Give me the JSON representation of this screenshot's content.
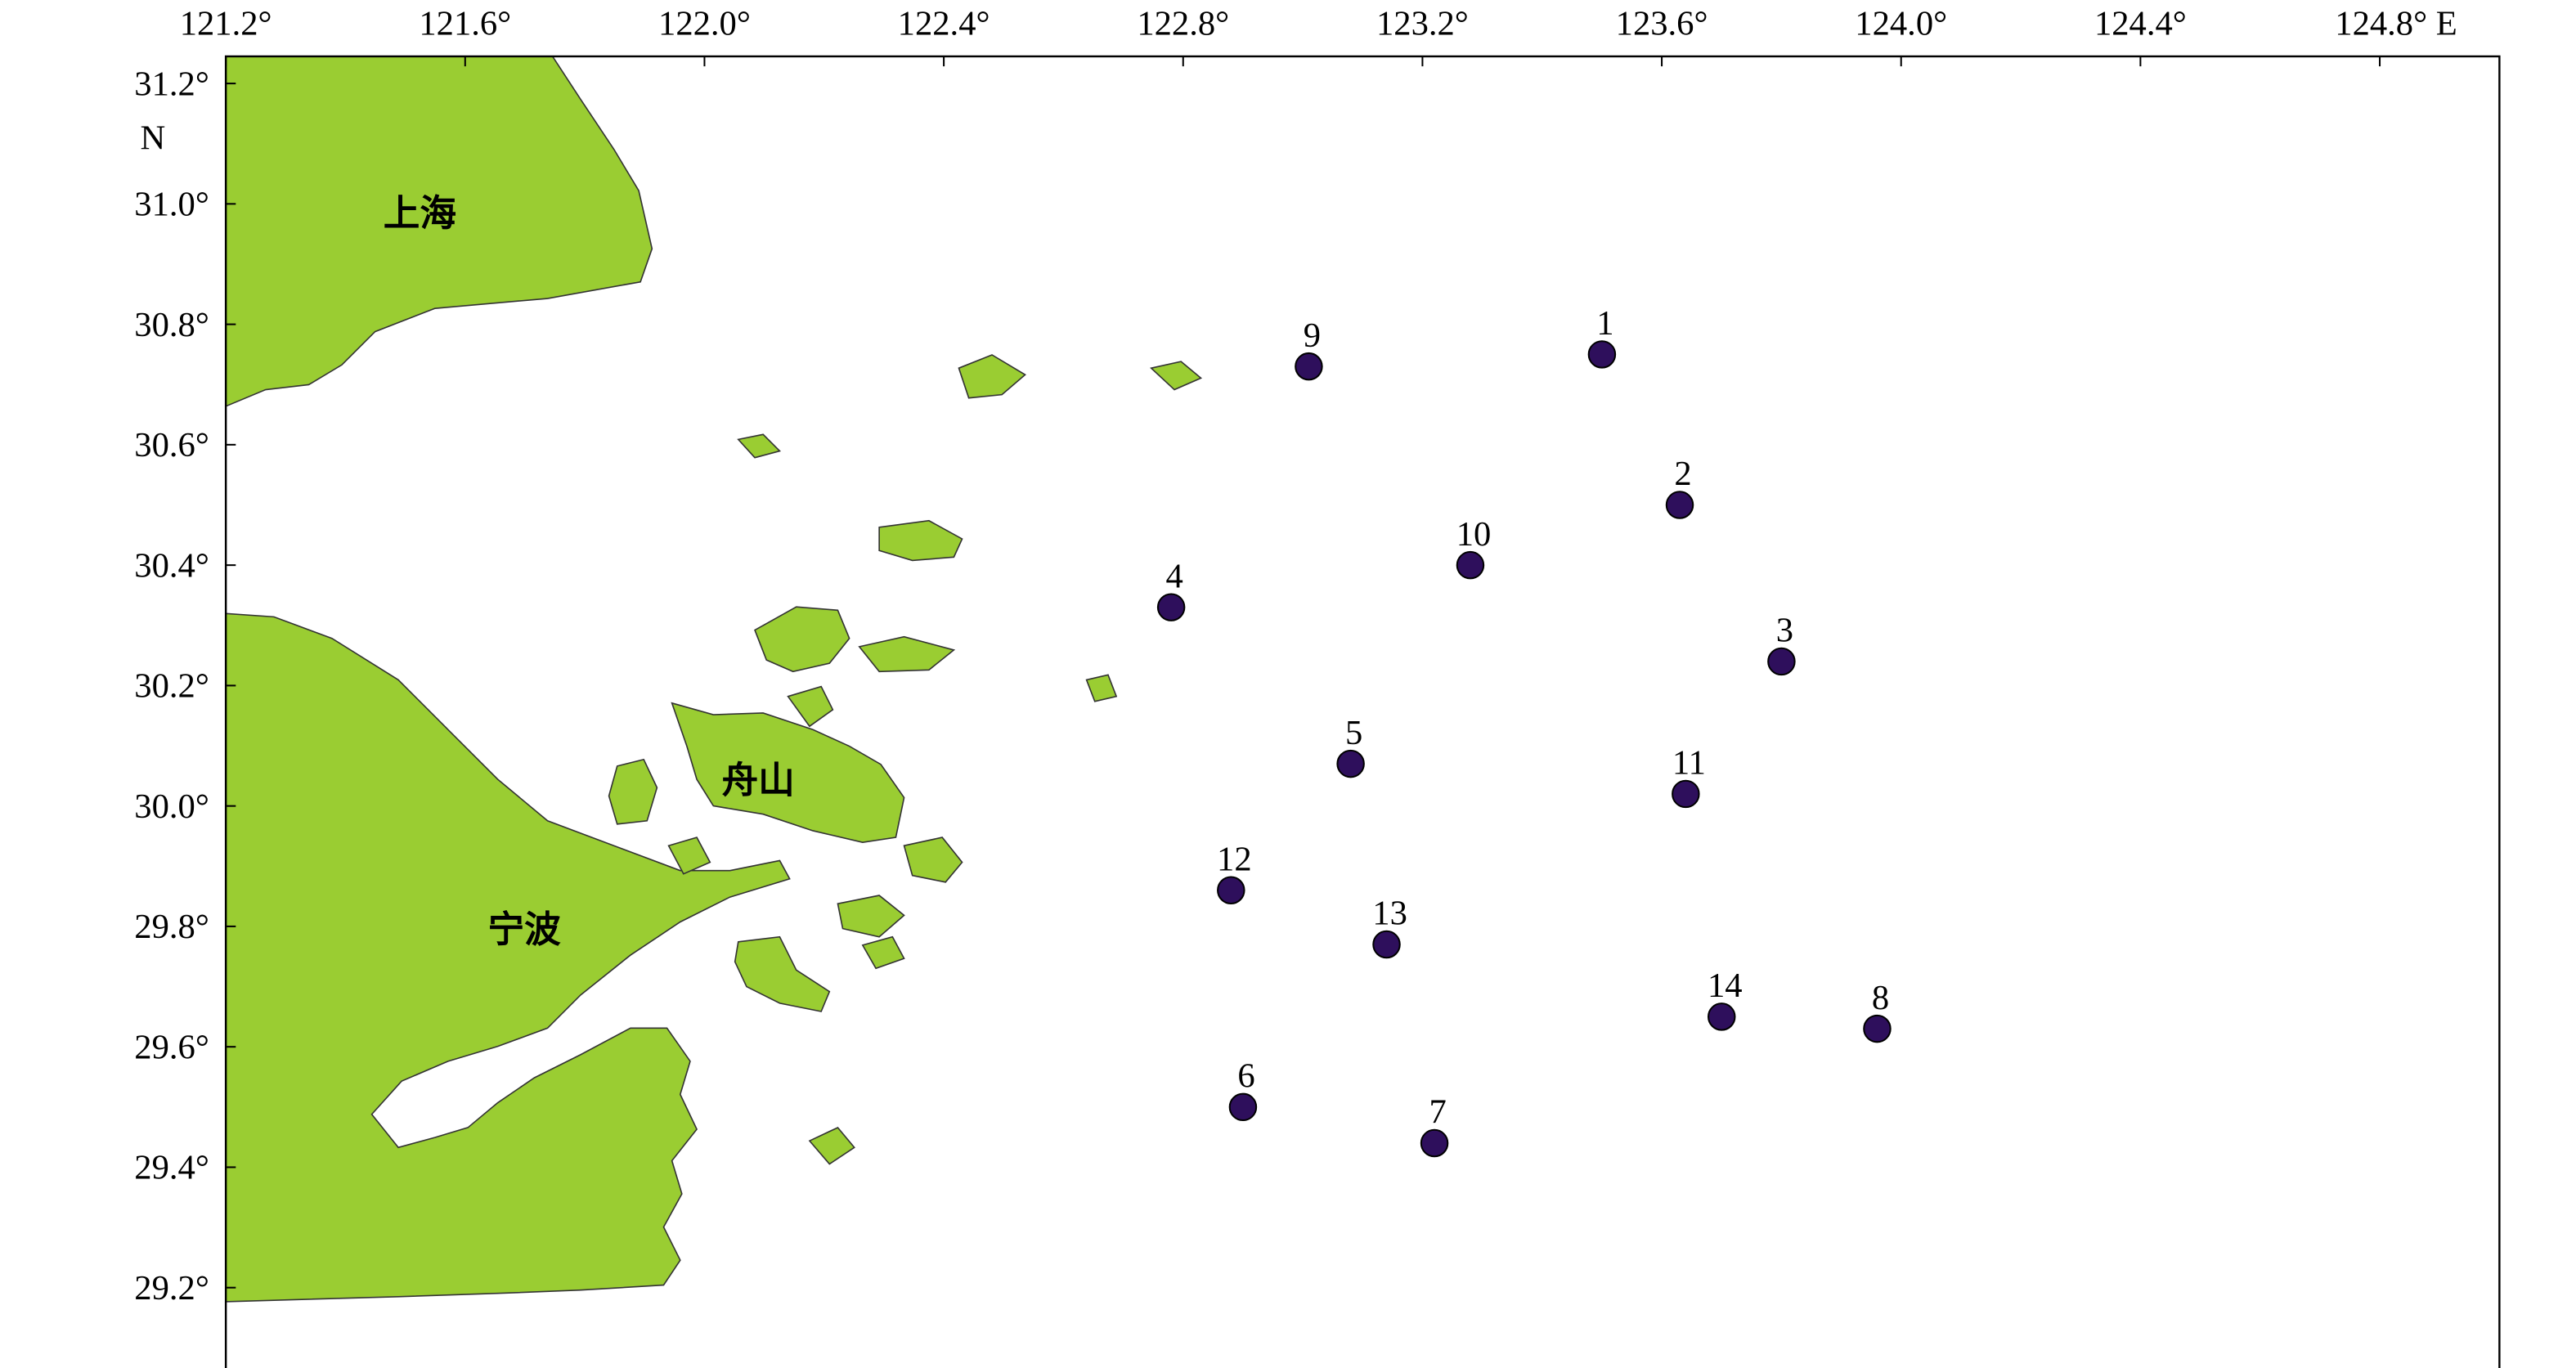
{
  "map": {
    "xlim": [
      121.2,
      125.0
    ],
    "ylim": [
      29.05,
      31.245
    ],
    "xticks": [
      {
        "value": 121.2,
        "label": "121.2°"
      },
      {
        "value": 121.6,
        "label": "121.6°"
      },
      {
        "value": 122.0,
        "label": "122.0°"
      },
      {
        "value": 122.4,
        "label": "122.4°"
      },
      {
        "value": 122.8,
        "label": "122.8°"
      },
      {
        "value": 123.2,
        "label": "123.2°"
      },
      {
        "value": 123.6,
        "label": "123.6°"
      },
      {
        "value": 124.0,
        "label": "124.0°"
      },
      {
        "value": 124.4,
        "label": "124.4°"
      },
      {
        "value": 124.8,
        "label": "124.8° E"
      }
    ],
    "yticks": [
      {
        "value": 31.2,
        "label": "31.2°"
      },
      {
        "value": 31.0,
        "label": "31.0°"
      },
      {
        "value": 30.8,
        "label": "30.8°"
      },
      {
        "value": 30.6,
        "label": "30.6°"
      },
      {
        "value": 30.4,
        "label": "30.4°"
      },
      {
        "value": 30.2,
        "label": "30.2°"
      },
      {
        "value": 30.0,
        "label": "30.0°"
      },
      {
        "value": 29.8,
        "label": "29.8°"
      },
      {
        "value": 29.6,
        "label": "29.6°"
      },
      {
        "value": 29.4,
        "label": "29.4°"
      },
      {
        "value": 29.2,
        "label": "29.2°"
      }
    ],
    "y_axis_label": "N",
    "places": [
      "上海",
      "舟山",
      "宁波"
    ],
    "land_color": "#9acd32",
    "station_color": "#2e0f5c",
    "stations": [
      {
        "label": "1",
        "lon": 123.5,
        "lat": 30.75
      },
      {
        "label": "2",
        "lon": 123.63,
        "lat": 30.5
      },
      {
        "label": "3",
        "lon": 123.8,
        "lat": 30.24
      },
      {
        "label": "4",
        "lon": 122.78,
        "lat": 30.33
      },
      {
        "label": "5",
        "lon": 123.08,
        "lat": 30.07
      },
      {
        "label": "6",
        "lon": 122.9,
        "lat": 29.5
      },
      {
        "label": "7",
        "lon": 123.22,
        "lat": 29.44
      },
      {
        "label": "8",
        "lon": 123.96,
        "lat": 29.63
      },
      {
        "label": "9",
        "lon": 123.01,
        "lat": 30.73
      },
      {
        "label": "10",
        "lon": 123.28,
        "lat": 30.4
      },
      {
        "label": "11",
        "lon": 123.64,
        "lat": 30.02
      },
      {
        "label": "12",
        "lon": 122.88,
        "lat": 29.86
      },
      {
        "label": "13",
        "lon": 123.14,
        "lat": 29.77
      },
      {
        "label": "14",
        "lon": 123.7,
        "lat": 29.65
      }
    ]
  }
}
